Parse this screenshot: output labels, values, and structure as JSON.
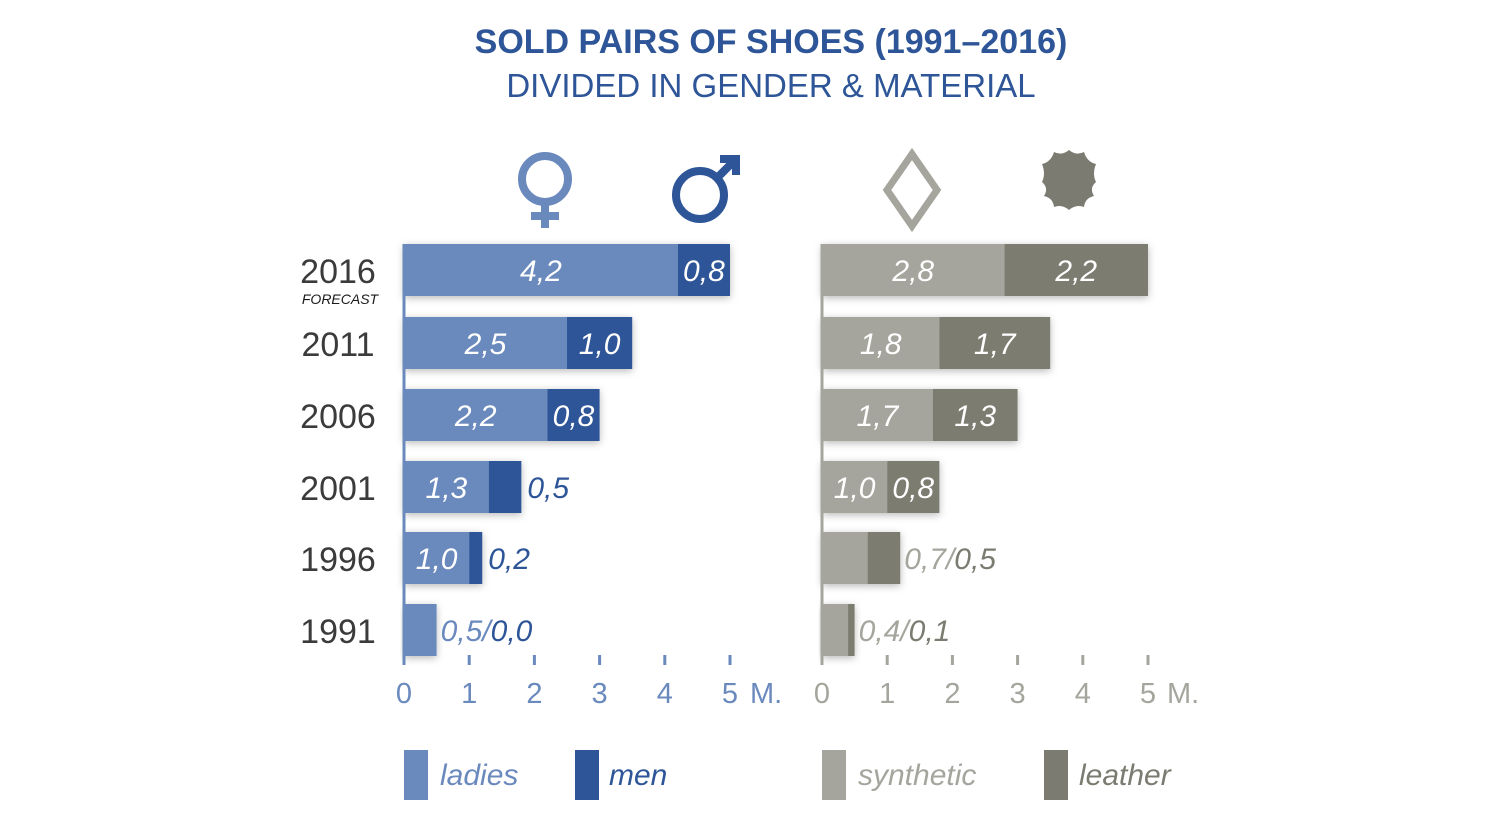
{
  "title": "SOLD PAIRS OF SHOES (1991–2016)",
  "subtitle": "DIVIDED IN GENDER & MATERIAL",
  "colors": {
    "ladies": "#6a89bd",
    "men": "#2d5597",
    "synthetic": "#a5a59d",
    "leather": "#7b7b71",
    "title": "#2d5597",
    "year_text": "#3b3b3b"
  },
  "icons": {
    "gender": [
      "female-symbol-icon",
      "male-symbol-icon"
    ],
    "material": [
      "diamond-outline-icon",
      "leather-hide-icon"
    ]
  },
  "unit_label": "M.",
  "chart_data": [
    {
      "type": "bar",
      "orientation": "horizontal",
      "stacked": true,
      "categories": [
        "2016",
        "2011",
        "2006",
        "2001",
        "1996",
        "1991"
      ],
      "category_notes": {
        "2016": "FORECAST"
      },
      "xlim": [
        0,
        5
      ],
      "xticks": [
        "0",
        "1",
        "2",
        "3",
        "4",
        "5"
      ],
      "unit": "M.",
      "series": [
        {
          "name": "ladies",
          "values": [
            4.2,
            2.5,
            2.2,
            1.3,
            1.0,
            0.5
          ],
          "labels": [
            "4,2",
            "2,5",
            "2,2",
            "1,3",
            "1,0",
            "0,5"
          ]
        },
        {
          "name": "men",
          "values": [
            0.8,
            1.0,
            0.8,
            0.5,
            0.2,
            0.0
          ],
          "labels": [
            "0,8",
            "1,0",
            "0,8",
            "0,5",
            "0,2",
            "0,0"
          ]
        }
      ],
      "legend": "bottom"
    },
    {
      "type": "bar",
      "orientation": "horizontal",
      "stacked": true,
      "categories": [
        "2016",
        "2011",
        "2006",
        "2001",
        "1996",
        "1991"
      ],
      "xlim": [
        0,
        5
      ],
      "xticks": [
        "0",
        "1",
        "2",
        "3",
        "4",
        "5"
      ],
      "unit": "M.",
      "series": [
        {
          "name": "synthetic",
          "values": [
            2.8,
            1.8,
            1.7,
            1.0,
            0.7,
            0.4
          ],
          "labels": [
            "2,8",
            "1,8",
            "1,7",
            "1,0",
            "0,7",
            "0,4"
          ]
        },
        {
          "name": "leather",
          "values": [
            2.2,
            1.7,
            1.3,
            0.8,
            0.5,
            0.1
          ],
          "labels": [
            "2,2",
            "1,7",
            "1,3",
            "0,8",
            "0,5",
            "0,1"
          ]
        }
      ],
      "legend": "bottom"
    }
  ]
}
